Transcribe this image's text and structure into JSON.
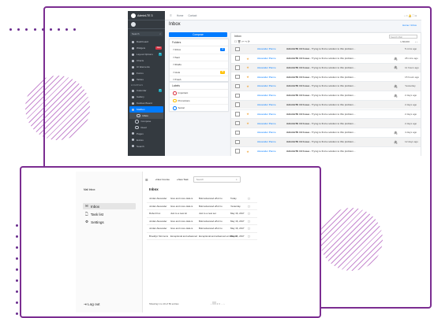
{
  "adminlte": {
    "brand": "AdminLTE 3",
    "topnav": [
      "Home",
      "Contact"
    ],
    "sidebar_search_placeholder": "Search",
    "sidebar": {
      "items_top": [
        {
          "label": "Dashboard"
        },
        {
          "label": "Widgets",
          "badge": "New",
          "badge_color": "#dc3545"
        },
        {
          "label": "Layout Options",
          "badge": "6",
          "badge_color": "#17a2b8"
        },
        {
          "label": "Charts"
        },
        {
          "label": "UI Elements"
        },
        {
          "label": "Forms"
        },
        {
          "label": "Tables"
        }
      ],
      "section_header": "EXAMPLES",
      "items_examples": [
        {
          "label": "Calendar",
          "badge": "2",
          "badge_color": "#17a2b8"
        },
        {
          "label": "Gallery"
        },
        {
          "label": "Kanban Board"
        },
        {
          "label": "Mailbox",
          "active": true
        }
      ],
      "mailbox_sub": [
        {
          "label": "Inbox",
          "active": true
        },
        {
          "label": "Compose"
        },
        {
          "label": "Read"
        }
      ],
      "items_bottom": [
        {
          "label": "Pages"
        },
        {
          "label": "Extras"
        },
        {
          "label": "Search"
        }
      ]
    },
    "page_title": "Inbox",
    "breadcrumb": "Home / Inbox",
    "compose_label": "Compose",
    "folders_title": "Folders",
    "folders": [
      {
        "label": "Inbox",
        "count": "12",
        "count_color": "#007bff"
      },
      {
        "label": "Sent"
      },
      {
        "label": "Drafts"
      },
      {
        "label": "Junk",
        "count": "65",
        "count_color": "#ffc107"
      },
      {
        "label": "Trash"
      }
    ],
    "labels_title": "Labels",
    "labels": [
      {
        "label": "Important",
        "color": "#dc3545"
      },
      {
        "label": "Promotions",
        "color": "#ffc107"
      },
      {
        "label": "Social",
        "color": "#007bff"
      }
    ],
    "inbox_header": "Inbox",
    "search_mail_placeholder": "Search Mail",
    "pager": "1-50/200",
    "messages": [
      {
        "name": "Alexander Pierce",
        "subject_bold": "AdminLTE 3.0 Issue",
        "subject": " - Trying to find a solution to this problem...",
        "attach": false,
        "date": "5 mins ago",
        "star": false
      },
      {
        "name": "Alexander Pierce",
        "subject_bold": "AdminLTE 3.0 Issue",
        "subject": " - Trying to find a solution to this problem...",
        "attach": true,
        "date": "28 mins ago",
        "star": true
      },
      {
        "name": "Alexander Pierce",
        "subject_bold": "AdminLTE 3.0 Issue",
        "subject": " - Trying to find a solution to this problem...",
        "attach": true,
        "date": "11 hours ago",
        "star": true
      },
      {
        "name": "Alexander Pierce",
        "subject_bold": "AdminLTE 3.0 Issue",
        "subject": " - Trying to find a solution to this problem...",
        "attach": false,
        "date": "15 hours ago",
        "star": true
      },
      {
        "name": "Alexander Pierce",
        "subject_bold": "AdminLTE 3.0 Issue",
        "subject": " - Trying to find a solution to this problem...",
        "attach": true,
        "date": "Yesterday",
        "star": true
      },
      {
        "name": "Alexander Pierce",
        "subject_bold": "AdminLTE 3.0 Issue",
        "subject": " - Trying to find a solution to this problem...",
        "attach": true,
        "date": "2 days ago",
        "star": false
      },
      {
        "name": "Alexander Pierce",
        "subject_bold": "AdminLTE 3.0 Issue",
        "subject": " - Trying to find a solution to this problem...",
        "attach": false,
        "date": "2 days ago",
        "star": false
      },
      {
        "name": "Alexander Pierce",
        "subject_bold": "AdminLTE 3.0 Issue",
        "subject": " - Trying to find a solution to this problem...",
        "attach": false,
        "date": "2 days ago",
        "star": true
      },
      {
        "name": "Alexander Pierce",
        "subject_bold": "AdminLTE 3.0 Issue",
        "subject": " - Trying to find a solution to this problem...",
        "attach": false,
        "date": "2 days ago",
        "star": true
      },
      {
        "name": "Alexander Pierce",
        "subject_bold": "AdminLTE 3.0 Issue",
        "subject": " - Trying to find a solution to this problem...",
        "attach": true,
        "date": "4 days ago",
        "star": false
      },
      {
        "name": "Alexander Pierce",
        "subject_bold": "AdminLTE 3.0 Issue",
        "subject": " - Trying to find a solution to this problem...",
        "attach": true,
        "date": "12 days ago",
        "star": false
      },
      {
        "name": "Alexander Pierce",
        "subject_bold": "AdminLTE 3.0 Issue",
        "subject": " - Trying to find a solution to this problem...",
        "attach": false,
        "date": "",
        "star": true
      }
    ]
  },
  "mailapp": {
    "brand": "Mail Inbox",
    "nav": [
      {
        "icon": "✉",
        "label": "Inbox",
        "active": true
      },
      {
        "icon": "🗋",
        "label": "Task list"
      },
      {
        "icon": "⚙",
        "label": "Settings"
      }
    ],
    "logout": "Log out",
    "new_course": "New Course",
    "new_task": "New Task",
    "search_placeholder": "Search",
    "title": "Inbox",
    "rows": [
      {
        "c1": "Jordan Alexander",
        "c2": "Give and more data is",
        "c3": "Bold advanced effort to\nsignal a selection here",
        "c4": "Today"
      },
      {
        "c1": "Jordan Alexander",
        "c2": "Give and more data is",
        "c3": "Bold advanced effort to\nsignal a selection here",
        "c4": "Yesterday"
      },
      {
        "c1": "Robert Fox",
        "c2": "Just to a new lot",
        "c3": "Just to a new set",
        "c4": "May 16, 2017"
      },
      {
        "c1": "Jordan Alexander",
        "c2": "Give and more data is",
        "c3": "Bold advanced effort to\nsignal a selection here",
        "c4": "May 16, 2017"
      },
      {
        "c1": "Jordan Alexander",
        "c2": "Give and more data is",
        "c3": "Bold advanced effort to\nsignal a selection here",
        "c4": "May 16, 2017"
      },
      {
        "c1": "Brooklyn Simmons",
        "c2": "Exceptional and advanced",
        "c3": "Exceptional and advanced enrollment",
        "c4": "May 16, 2017"
      }
    ],
    "footer": "Showing 1 to 10 of 50 entries"
  },
  "colors": {
    "accent": "#7b2d91",
    "hatch": "#c68ad0",
    "primary": "#007bff"
  }
}
